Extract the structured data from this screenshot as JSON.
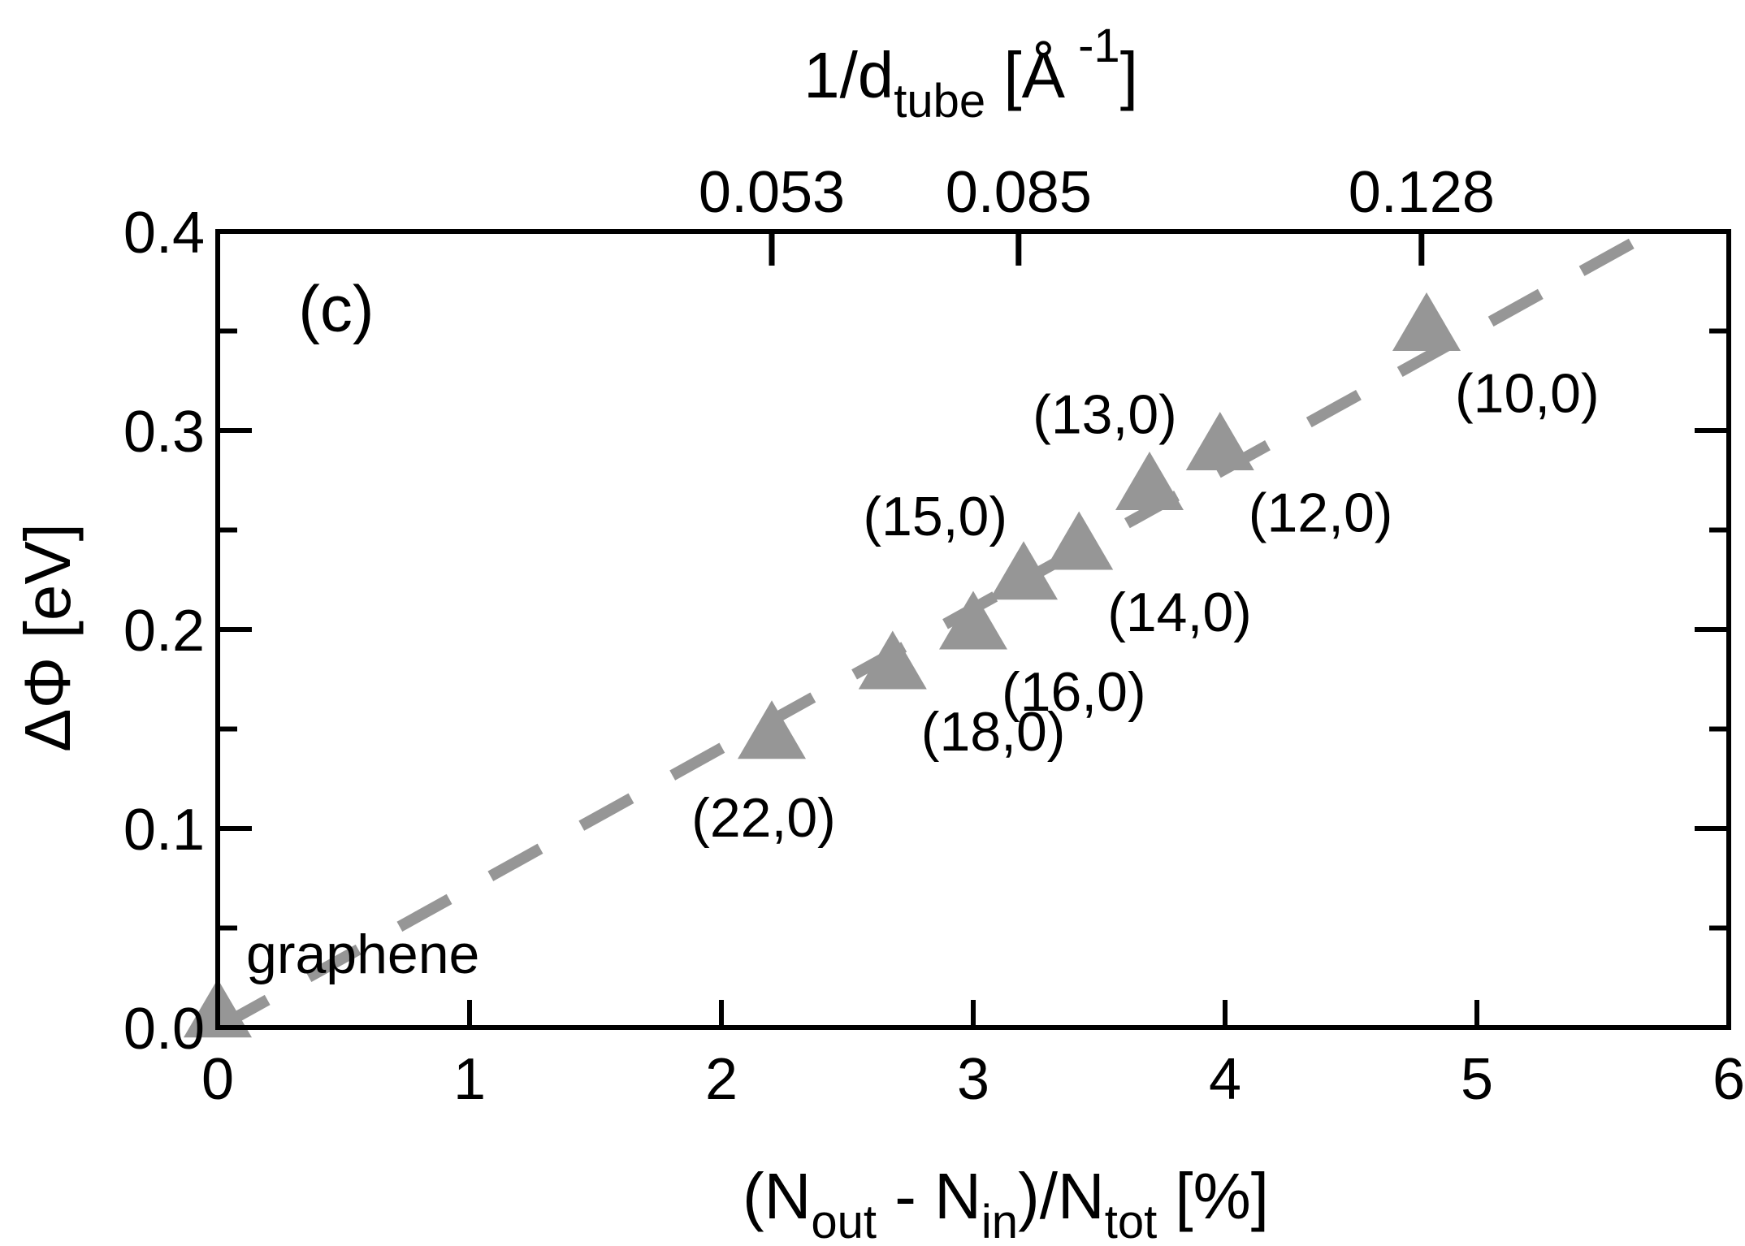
{
  "chart_data": {
    "type": "scatter",
    "panel_label": "(c)",
    "xlabel": {
      "parts": [
        {
          "t": "(N",
          "s": "n"
        },
        {
          "t": "out",
          "s": "sub"
        },
        {
          "t": " - N",
          "s": "n"
        },
        {
          "t": "in",
          "s": "sub"
        },
        {
          "t": ")/N",
          "s": "n"
        },
        {
          "t": "tot",
          "s": "sub"
        },
        {
          "t": " [%]",
          "s": "n"
        }
      ]
    },
    "ylabel": "ΔΦ [eV]",
    "top_xlabel": {
      "parts": [
        {
          "t": "1/d",
          "s": "n"
        },
        {
          "t": "tube",
          "s": "sub"
        },
        {
          "t": " [Å",
          "s": "n"
        },
        {
          "t": " -1",
          "s": "sup"
        },
        {
          "t": "]",
          "s": "n"
        }
      ]
    },
    "xlim": [
      0,
      6
    ],
    "ylim": [
      0,
      0.4
    ],
    "x_ticks": [
      {
        "value": 0,
        "label": "0"
      },
      {
        "value": 1,
        "label": "1"
      },
      {
        "value": 2,
        "label": "2"
      },
      {
        "value": 3,
        "label": "3"
      },
      {
        "value": 4,
        "label": "4"
      },
      {
        "value": 5,
        "label": "5"
      },
      {
        "value": 6,
        "label": "6"
      }
    ],
    "y_ticks": [
      {
        "value": 0,
        "label": "0.0"
      },
      {
        "value": 0.1,
        "label": "0.1"
      },
      {
        "value": 0.2,
        "label": "0.2"
      },
      {
        "value": 0.3,
        "label": "0.3"
      },
      {
        "value": 0.4,
        "label": "0.4"
      }
    ],
    "y_minor_ticks": [
      0.05,
      0.15,
      0.25,
      0.35
    ],
    "top_ticks": [
      {
        "x": 2.2,
        "label": "0.053"
      },
      {
        "x": 3.18,
        "label": "0.085"
      },
      {
        "x": 4.78,
        "label": "0.128"
      }
    ],
    "fit_line": {
      "x": [
        0,
        5.7
      ],
      "y": [
        0,
        0.4
      ],
      "style": "dashed"
    },
    "marker_color": "#969696",
    "series": [
      {
        "marker": "triangle",
        "points": [
          {
            "x": 0,
            "y": 0.005,
            "label": "graphene",
            "label_pos": "upper-right"
          },
          {
            "x": 2.2,
            "y": 0.145,
            "label": "(22,0)",
            "label_pos": "below-left"
          },
          {
            "x": 2.68,
            "y": 0.18,
            "label": "(18,0)",
            "label_pos": "below-right"
          },
          {
            "x": 3.0,
            "y": 0.2,
            "label": "(16,0)",
            "label_pos": "below-right"
          },
          {
            "x": 3.2,
            "y": 0.225,
            "label": "(15,0)",
            "label_pos": "upper-left"
          },
          {
            "x": 3.42,
            "y": 0.24,
            "label": "(14,0)",
            "label_pos": "below-right"
          },
          {
            "x": 3.7,
            "y": 0.27,
            "label": "(13,0)",
            "label_pos": "above"
          },
          {
            "x": 3.98,
            "y": 0.29,
            "label": "(12,0)",
            "label_pos": "below-right"
          },
          {
            "x": 4.8,
            "y": 0.35,
            "label": "(10,0)",
            "label_pos": "below-right"
          }
        ]
      }
    ]
  }
}
